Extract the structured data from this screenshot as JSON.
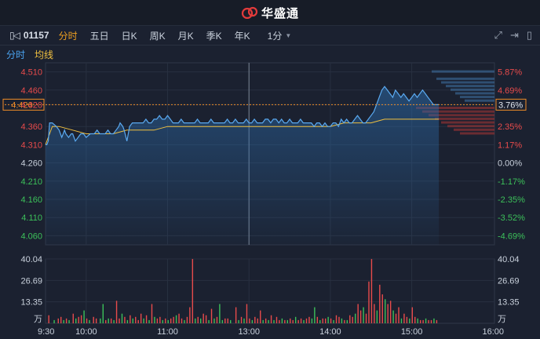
{
  "header": {
    "brand": "华盛通"
  },
  "toolbar": {
    "code": "01157",
    "tabs": [
      "分时",
      "五日",
      "日K",
      "周K",
      "月K",
      "季K",
      "年K"
    ],
    "interval": "1分"
  },
  "legend": {
    "line": "分时",
    "avg": "均线"
  },
  "colors": {
    "up": "#e84b4b",
    "down": "#3cc15a",
    "price": "#5aa9f0",
    "avg": "#f0c040",
    "orange": "#f08c28"
  },
  "chart_data": {
    "type": "line",
    "x_labels": [
      "9:30",
      "10:00",
      "11:00",
      "13:00",
      "14:00",
      "15:00",
      "16:00"
    ],
    "price_ticks_left": [
      "4.510",
      "4.460",
      "4.420",
      "4.360",
      "4.310",
      "4.260",
      "4.210",
      "4.160",
      "4.110",
      "4.060"
    ],
    "price_ticks_right": [
      "5.87%",
      "4.69%",
      "3.76%",
      "2.35%",
      "1.17%",
      "0.00%",
      "-1.17%",
      "-2.35%",
      "-3.52%",
      "-4.69%"
    ],
    "volume_ticks": [
      "40.04",
      "26.69",
      "13.35"
    ],
    "volume_unit": "万",
    "prev_close": 4.26,
    "ylim": [
      4.035,
      4.535
    ],
    "current": 4.42,
    "price_series": [
      [
        0,
        4.31
      ],
      [
        1,
        4.31
      ],
      [
        2,
        4.32
      ],
      [
        3,
        4.37
      ],
      [
        5,
        4.37
      ],
      [
        8,
        4.36
      ],
      [
        10,
        4.35
      ],
      [
        12,
        4.33
      ],
      [
        13,
        4.34
      ],
      [
        14,
        4.35
      ],
      [
        15,
        4.34
      ],
      [
        17,
        4.33
      ],
      [
        19,
        4.34
      ],
      [
        20,
        4.34
      ],
      [
        22,
        4.32
      ],
      [
        24,
        4.33
      ],
      [
        26,
        4.34
      ],
      [
        28,
        4.34
      ],
      [
        30,
        4.33
      ],
      [
        33,
        4.34
      ],
      [
        36,
        4.34
      ],
      [
        38,
        4.35
      ],
      [
        40,
        4.34
      ],
      [
        42,
        4.34
      ],
      [
        44,
        4.34
      ],
      [
        46,
        4.35
      ],
      [
        48,
        4.34
      ],
      [
        50,
        4.34
      ],
      [
        52,
        4.35
      ],
      [
        54,
        4.36
      ],
      [
        55,
        4.37
      ],
      [
        57,
        4.36
      ],
      [
        58,
        4.35
      ],
      [
        60,
        4.32
      ],
      [
        62,
        4.36
      ],
      [
        64,
        4.37
      ],
      [
        66,
        4.37
      ],
      [
        68,
        4.37
      ],
      [
        70,
        4.37
      ],
      [
        72,
        4.37
      ],
      [
        74,
        4.38
      ],
      [
        76,
        4.37
      ],
      [
        78,
        4.37
      ],
      [
        80,
        4.38
      ],
      [
        82,
        4.38
      ],
      [
        84,
        4.39
      ],
      [
        86,
        4.38
      ],
      [
        88,
        4.38
      ],
      [
        90,
        4.39
      ],
      [
        92,
        4.38
      ],
      [
        94,
        4.37
      ],
      [
        96,
        4.37
      ],
      [
        98,
        4.37
      ],
      [
        100,
        4.38
      ],
      [
        102,
        4.37
      ],
      [
        104,
        4.37
      ],
      [
        106,
        4.37
      ],
      [
        108,
        4.37
      ],
      [
        110,
        4.37
      ],
      [
        112,
        4.38
      ],
      [
        114,
        4.37
      ],
      [
        116,
        4.37
      ],
      [
        118,
        4.37
      ],
      [
        120,
        4.37
      ],
      [
        122,
        4.38
      ],
      [
        124,
        4.37
      ],
      [
        126,
        4.37
      ],
      [
        128,
        4.37
      ],
      [
        130,
        4.37
      ],
      [
        132,
        4.37
      ],
      [
        134,
        4.38
      ],
      [
        136,
        4.37
      ],
      [
        138,
        4.37
      ],
      [
        140,
        4.38
      ],
      [
        142,
        4.37
      ],
      [
        144,
        4.37
      ],
      [
        146,
        4.37
      ],
      [
        148,
        4.38
      ],
      [
        150,
        4.37
      ],
      [
        152,
        4.37
      ],
      [
        154,
        4.38
      ],
      [
        156,
        4.37
      ],
      [
        158,
        4.37
      ],
      [
        160,
        4.37
      ],
      [
        162,
        4.38
      ],
      [
        164,
        4.38
      ],
      [
        166,
        4.37
      ],
      [
        168,
        4.38
      ],
      [
        170,
        4.38
      ],
      [
        172,
        4.37
      ],
      [
        174,
        4.38
      ],
      [
        176,
        4.37
      ],
      [
        178,
        4.37
      ],
      [
        180,
        4.38
      ],
      [
        182,
        4.37
      ],
      [
        184,
        4.37
      ],
      [
        186,
        4.37
      ],
      [
        188,
        4.38
      ],
      [
        190,
        4.37
      ],
      [
        192,
        4.37
      ],
      [
        194,
        4.37
      ],
      [
        196,
        4.37
      ],
      [
        198,
        4.36
      ],
      [
        200,
        4.37
      ],
      [
        202,
        4.37
      ],
      [
        204,
        4.36
      ],
      [
        206,
        4.37
      ],
      [
        208,
        4.36
      ],
      [
        210,
        4.36
      ],
      [
        212,
        4.37
      ],
      [
        214,
        4.37
      ],
      [
        216,
        4.36
      ],
      [
        218,
        4.38
      ],
      [
        220,
        4.37
      ],
      [
        222,
        4.38
      ],
      [
        224,
        4.37
      ],
      [
        226,
        4.37
      ],
      [
        228,
        4.38
      ],
      [
        230,
        4.39
      ],
      [
        232,
        4.38
      ],
      [
        234,
        4.37
      ],
      [
        236,
        4.37
      ],
      [
        238,
        4.38
      ],
      [
        240,
        4.39
      ],
      [
        242,
        4.4
      ],
      [
        244,
        4.42
      ],
      [
        246,
        4.44
      ],
      [
        248,
        4.46
      ],
      [
        250,
        4.47
      ],
      [
        252,
        4.46
      ],
      [
        254,
        4.45
      ],
      [
        256,
        4.44
      ],
      [
        258,
        4.46
      ],
      [
        260,
        4.45
      ],
      [
        262,
        4.44
      ],
      [
        264,
        4.45
      ],
      [
        266,
        4.44
      ],
      [
        268,
        4.43
      ],
      [
        270,
        4.44
      ],
      [
        272,
        4.45
      ],
      [
        274,
        4.44
      ],
      [
        276,
        4.45
      ],
      [
        278,
        4.46
      ],
      [
        280,
        4.45
      ],
      [
        282,
        4.44
      ],
      [
        284,
        4.43
      ],
      [
        286,
        4.42
      ],
      [
        288,
        4.42
      ],
      [
        290,
        4.42
      ]
    ],
    "avg_series": [
      [
        0,
        4.31
      ],
      [
        5,
        4.36
      ],
      [
        10,
        4.36
      ],
      [
        20,
        4.35
      ],
      [
        30,
        4.34
      ],
      [
        40,
        4.34
      ],
      [
        50,
        4.34
      ],
      [
        60,
        4.35
      ],
      [
        70,
        4.35
      ],
      [
        80,
        4.35
      ],
      [
        90,
        4.36
      ],
      [
        100,
        4.36
      ],
      [
        110,
        4.36
      ],
      [
        120,
        4.36
      ],
      [
        130,
        4.36
      ],
      [
        140,
        4.36
      ],
      [
        150,
        4.36
      ],
      [
        160,
        4.36
      ],
      [
        170,
        4.36
      ],
      [
        180,
        4.36
      ],
      [
        190,
        4.36
      ],
      [
        200,
        4.36
      ],
      [
        210,
        4.36
      ],
      [
        220,
        4.37
      ],
      [
        230,
        4.37
      ],
      [
        240,
        4.37
      ],
      [
        250,
        4.38
      ],
      [
        260,
        4.38
      ],
      [
        270,
        4.38
      ],
      [
        280,
        4.38
      ],
      [
        290,
        4.38
      ]
    ],
    "volume_series": [
      [
        2,
        5,
        "u"
      ],
      [
        6,
        2,
        "d"
      ],
      [
        9,
        3,
        "u"
      ],
      [
        11,
        4,
        "u"
      ],
      [
        13,
        2,
        "d"
      ],
      [
        15,
        3,
        "u"
      ],
      [
        17,
        2,
        "d"
      ],
      [
        20,
        6,
        "u"
      ],
      [
        22,
        3,
        "d"
      ],
      [
        24,
        4,
        "u"
      ],
      [
        26,
        5,
        "u"
      ],
      [
        28,
        8,
        "d"
      ],
      [
        30,
        3,
        "u"
      ],
      [
        32,
        2,
        "d"
      ],
      [
        35,
        4,
        "u"
      ],
      [
        37,
        3,
        "u"
      ],
      [
        40,
        3,
        "d"
      ],
      [
        42,
        12,
        "d"
      ],
      [
        44,
        2,
        "u"
      ],
      [
        46,
        3,
        "d"
      ],
      [
        48,
        3,
        "u"
      ],
      [
        50,
        2,
        "d"
      ],
      [
        52,
        14,
        "u"
      ],
      [
        54,
        3,
        "u"
      ],
      [
        56,
        6,
        "d"
      ],
      [
        58,
        4,
        "u"
      ],
      [
        60,
        2,
        "d"
      ],
      [
        62,
        5,
        "u"
      ],
      [
        64,
        3,
        "d"
      ],
      [
        66,
        4,
        "u"
      ],
      [
        68,
        2,
        "u"
      ],
      [
        70,
        6,
        "u"
      ],
      [
        72,
        3,
        "d"
      ],
      [
        74,
        5,
        "u"
      ],
      [
        76,
        2,
        "d"
      ],
      [
        78,
        12,
        "u"
      ],
      [
        80,
        4,
        "d"
      ],
      [
        82,
        3,
        "u"
      ],
      [
        84,
        4,
        "u"
      ],
      [
        86,
        2,
        "d"
      ],
      [
        88,
        3,
        "u"
      ],
      [
        90,
        2,
        "d"
      ],
      [
        92,
        3,
        "u"
      ],
      [
        94,
        4,
        "u"
      ],
      [
        96,
        5,
        "d"
      ],
      [
        98,
        6,
        "u"
      ],
      [
        100,
        3,
        "u"
      ],
      [
        102,
        2,
        "d"
      ],
      [
        104,
        4,
        "u"
      ],
      [
        106,
        10,
        "u"
      ],
      [
        108,
        40,
        "u"
      ],
      [
        110,
        3,
        "d"
      ],
      [
        112,
        4,
        "u"
      ],
      [
        114,
        3,
        "d"
      ],
      [
        116,
        6,
        "u"
      ],
      [
        118,
        5,
        "u"
      ],
      [
        120,
        2,
        "d"
      ],
      [
        122,
        9,
        "u"
      ],
      [
        124,
        3,
        "d"
      ],
      [
        126,
        4,
        "u"
      ],
      [
        128,
        12,
        "d"
      ],
      [
        130,
        2,
        "d"
      ],
      [
        132,
        3,
        "u"
      ],
      [
        134,
        3,
        "u"
      ],
      [
        136,
        2,
        "d"
      ],
      [
        140,
        10,
        "u"
      ],
      [
        142,
        2,
        "d"
      ],
      [
        144,
        4,
        "u"
      ],
      [
        146,
        3,
        "d"
      ],
      [
        148,
        12,
        "u"
      ],
      [
        150,
        3,
        "u"
      ],
      [
        152,
        2,
        "d"
      ],
      [
        154,
        4,
        "u"
      ],
      [
        156,
        3,
        "u"
      ],
      [
        158,
        8,
        "u"
      ],
      [
        160,
        2,
        "d"
      ],
      [
        162,
        3,
        "u"
      ],
      [
        164,
        2,
        "d"
      ],
      [
        166,
        5,
        "u"
      ],
      [
        168,
        2,
        "d"
      ],
      [
        170,
        4,
        "u"
      ],
      [
        172,
        2,
        "u"
      ],
      [
        174,
        3,
        "d"
      ],
      [
        176,
        2,
        "u"
      ],
      [
        178,
        2,
        "d"
      ],
      [
        180,
        3,
        "u"
      ],
      [
        182,
        2,
        "u"
      ],
      [
        184,
        4,
        "d"
      ],
      [
        186,
        2,
        "u"
      ],
      [
        188,
        3,
        "u"
      ],
      [
        190,
        2,
        "d"
      ],
      [
        192,
        3,
        "u"
      ],
      [
        194,
        4,
        "u"
      ],
      [
        196,
        3,
        "d"
      ],
      [
        198,
        10,
        "d"
      ],
      [
        200,
        4,
        "u"
      ],
      [
        202,
        2,
        "d"
      ],
      [
        204,
        3,
        "u"
      ],
      [
        206,
        3,
        "u"
      ],
      [
        208,
        4,
        "d"
      ],
      [
        210,
        3,
        "u"
      ],
      [
        212,
        2,
        "d"
      ],
      [
        214,
        5,
        "u"
      ],
      [
        216,
        4,
        "u"
      ],
      [
        218,
        3,
        "d"
      ],
      [
        220,
        2,
        "u"
      ],
      [
        222,
        2,
        "d"
      ],
      [
        224,
        5,
        "u"
      ],
      [
        226,
        4,
        "u"
      ],
      [
        228,
        6,
        "d"
      ],
      [
        230,
        12,
        "u"
      ],
      [
        232,
        8,
        "u"
      ],
      [
        234,
        10,
        "d"
      ],
      [
        236,
        6,
        "u"
      ],
      [
        238,
        26,
        "u"
      ],
      [
        240,
        40,
        "u"
      ],
      [
        242,
        12,
        "u"
      ],
      [
        244,
        8,
        "d"
      ],
      [
        246,
        24,
        "u"
      ],
      [
        248,
        18,
        "u"
      ],
      [
        250,
        15,
        "d"
      ],
      [
        252,
        12,
        "u"
      ],
      [
        254,
        14,
        "u"
      ],
      [
        256,
        8,
        "d"
      ],
      [
        258,
        6,
        "u"
      ],
      [
        260,
        10,
        "u"
      ],
      [
        262,
        3,
        "d"
      ],
      [
        264,
        6,
        "u"
      ],
      [
        266,
        4,
        "u"
      ],
      [
        268,
        3,
        "d"
      ],
      [
        270,
        10,
        "u"
      ],
      [
        272,
        4,
        "u"
      ],
      [
        274,
        3,
        "d"
      ],
      [
        276,
        2,
        "u"
      ],
      [
        278,
        2,
        "u"
      ],
      [
        280,
        3,
        "d"
      ],
      [
        282,
        2,
        "u"
      ],
      [
        284,
        2,
        "u"
      ],
      [
        286,
        3,
        "d"
      ],
      [
        288,
        2,
        "u"
      ]
    ],
    "order_book_asks": [
      4.51,
      4.49,
      4.48,
      4.47,
      4.46,
      4.45,
      4.44,
      4.43
    ],
    "order_book_bids": [
      4.41,
      4.4,
      4.39,
      4.38,
      4.37,
      4.36,
      4.35,
      4.34
    ]
  }
}
